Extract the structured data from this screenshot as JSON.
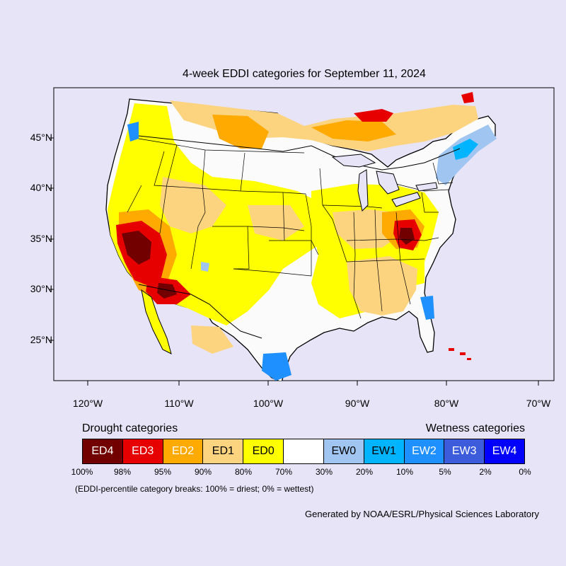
{
  "title": "4-week EDDI categories for September 11, 2024",
  "map": {
    "lat_labels": [
      "45°N",
      "40°N",
      "35°N",
      "30°N",
      "25°N"
    ],
    "lon_labels": [
      "120°W",
      "110°W",
      "100°W",
      "90°W",
      "80°W",
      "70°W"
    ]
  },
  "legend": {
    "drought_title": "Drought categories",
    "wet_title": "Wetness categories",
    "categories": [
      {
        "label": "ED4",
        "color": "#730000",
        "text_color": "#ffffff"
      },
      {
        "label": "ED3",
        "color": "#e60000",
        "text_color": "#ffffff"
      },
      {
        "label": "ED2",
        "color": "#ffaa00",
        "text_color": "#ffffff"
      },
      {
        "label": "ED1",
        "color": "#fcd37f",
        "text_color": "#000000"
      },
      {
        "label": "ED0",
        "color": "#ffff00",
        "text_color": "#000000"
      },
      {
        "label": "",
        "color": "#ffffff",
        "text_color": "#000000"
      },
      {
        "label": "EW0",
        "color": "#9fc5f0",
        "text_color": "#000000"
      },
      {
        "label": "EW1",
        "color": "#00b4ff",
        "text_color": "#000000"
      },
      {
        "label": "EW2",
        "color": "#1e90ff",
        "text_color": "#ffffff"
      },
      {
        "label": "EW3",
        "color": "#3c5cdc",
        "text_color": "#ffffff"
      },
      {
        "label": "EW4",
        "color": "#0000ff",
        "text_color": "#ffffff"
      }
    ],
    "breaks": [
      "100%",
      "98%",
      "95%",
      "90%",
      "80%",
      "70%",
      "30%",
      "20%",
      "10%",
      "5%",
      "2%",
      "0%"
    ]
  },
  "note": "(EDDI-percentile category breaks: 100% = driest; 0% = wettest)",
  "credit": "Generated by NOAA/ESRL/Physical Sciences Laboratory"
}
